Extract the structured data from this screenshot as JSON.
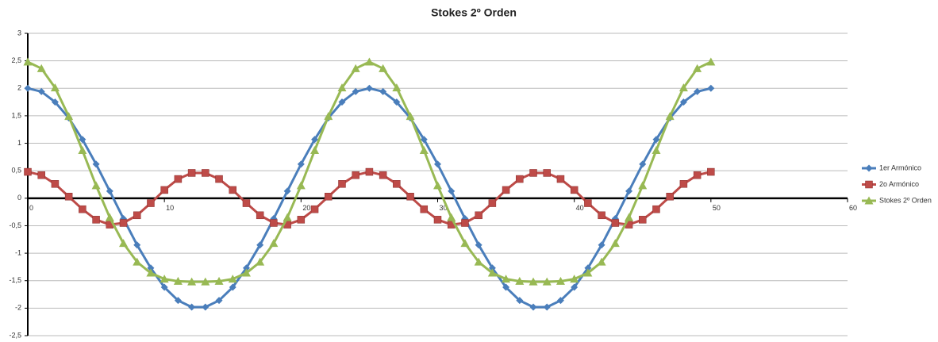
{
  "chart_data": {
    "type": "line",
    "title": "Stokes 2º Orden",
    "x": [
      0,
      1,
      2,
      3,
      4,
      5,
      6,
      7,
      8,
      9,
      10,
      11,
      12,
      13,
      14,
      15,
      16,
      17,
      18,
      19,
      20,
      21,
      22,
      23,
      24,
      25,
      26,
      27,
      28,
      29,
      30,
      31,
      32,
      33,
      34,
      35,
      36,
      37,
      38,
      39,
      40,
      41,
      42,
      43,
      44,
      45,
      46,
      47,
      48,
      49,
      50
    ],
    "series": [
      {
        "name": "1er Armónico",
        "color": "#4a7ebb",
        "marker": "diamond",
        "values": [
          2,
          1.94,
          1.75,
          1.46,
          1.07,
          0.62,
          0.13,
          -0.37,
          -0.85,
          -1.27,
          -1.62,
          -1.86,
          -1.98,
          -1.98,
          -1.86,
          -1.62,
          -1.27,
          -0.85,
          -0.37,
          0.13,
          0.62,
          1.07,
          1.46,
          1.75,
          1.94,
          2,
          1.94,
          1.75,
          1.46,
          1.07,
          0.62,
          0.13,
          -0.37,
          -0.85,
          -1.27,
          -1.62,
          -1.86,
          -1.98,
          -1.98,
          -1.86,
          -1.62,
          -1.27,
          -0.85,
          -0.37,
          0.13,
          0.62,
          1.07,
          1.46,
          1.75,
          1.94,
          2
        ]
      },
      {
        "name": "2o Armónico",
        "color": "#be4b48",
        "marker": "square",
        "values": [
          0.48,
          0.42,
          0.26,
          0.03,
          -0.2,
          -0.39,
          -0.48,
          -0.45,
          -0.31,
          -0.09,
          0.15,
          0.35,
          0.46,
          0.46,
          0.35,
          0.15,
          -0.09,
          -0.31,
          -0.45,
          -0.48,
          -0.39,
          -0.2,
          0.03,
          0.26,
          0.42,
          0.48,
          0.42,
          0.26,
          0.03,
          -0.2,
          -0.39,
          -0.48,
          -0.45,
          -0.31,
          -0.09,
          0.15,
          0.35,
          0.46,
          0.46,
          0.35,
          0.15,
          -0.09,
          -0.31,
          -0.45,
          -0.48,
          -0.39,
          -0.2,
          0.03,
          0.26,
          0.42,
          0.48
        ]
      },
      {
        "name": "Stokes 2º Orden",
        "color": "#98b954",
        "marker": "triangle",
        "values": [
          2.48,
          2.36,
          2.01,
          1.49,
          0.87,
          0.23,
          -0.35,
          -0.82,
          -1.16,
          -1.36,
          -1.47,
          -1.51,
          -1.52,
          -1.52,
          -1.51,
          -1.47,
          -1.36,
          -1.16,
          -0.82,
          -0.35,
          0.23,
          0.87,
          1.49,
          2.01,
          2.36,
          2.48,
          2.36,
          2.01,
          1.49,
          0.87,
          0.23,
          -0.35,
          -0.82,
          -1.16,
          -1.36,
          -1.47,
          -1.51,
          -1.52,
          -1.52,
          -1.51,
          -1.47,
          -1.36,
          -1.16,
          -0.82,
          -0.35,
          0.23,
          0.87,
          1.49,
          2.01,
          2.36,
          2.48
        ]
      }
    ],
    "xlim": [
      0,
      60
    ],
    "xticks": [
      0,
      10,
      20,
      30,
      40,
      50,
      60
    ],
    "ylim": [
      -2.5,
      3
    ],
    "yticks": [
      {
        "value": -2.5,
        "label": "-2,5"
      },
      -2,
      {
        "value": -1.5,
        "label": "-1,5"
      },
      -1,
      {
        "value": -0.5,
        "label": "-0,5"
      },
      0,
      {
        "value": 0.5,
        "label": "0,5"
      },
      1,
      {
        "value": 1.5,
        "label": "1,5"
      },
      2,
      {
        "value": 2.5,
        "label": "2,5"
      },
      3
    ],
    "grid": true,
    "legend": "right"
  }
}
